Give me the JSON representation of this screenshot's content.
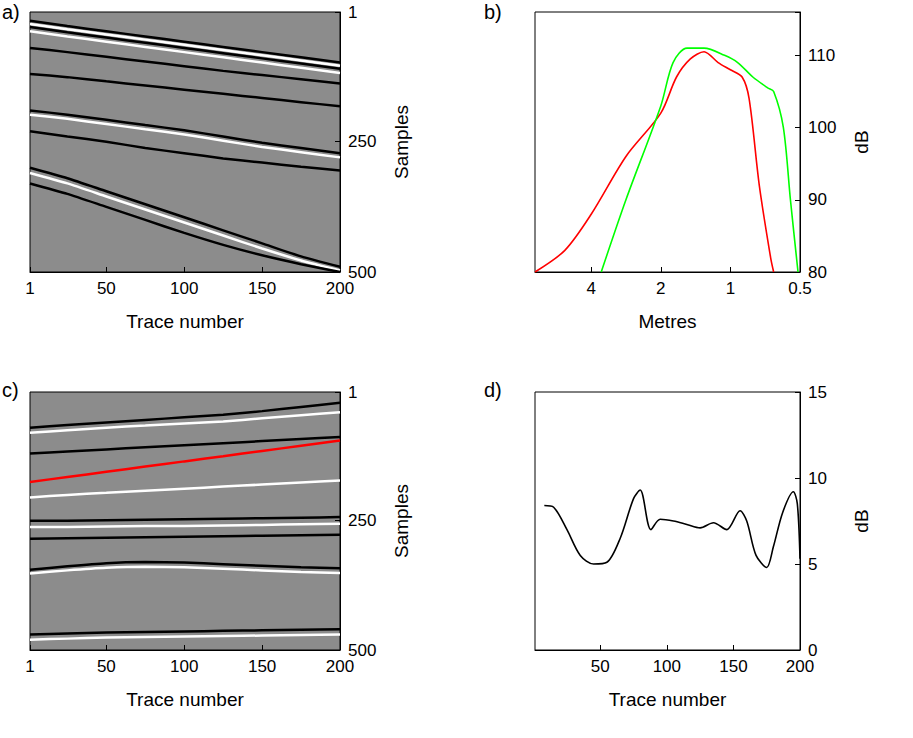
{
  "chart_data": [
    {
      "label": "a)",
      "type": "line",
      "xlabel": "Trace number",
      "ylabel": "Samples",
      "xlim": [
        1,
        200
      ],
      "ylim": [
        500,
        1
      ],
      "xticks": [
        1,
        50,
        100,
        150,
        200
      ],
      "yticks": [
        1,
        250,
        500
      ],
      "grid": false,
      "x": [
        1,
        25,
        50,
        75,
        100,
        125,
        150,
        175,
        200
      ],
      "series": [
        {
          "color": "#000000",
          "values": [
            18,
            28,
            38,
            48,
            58,
            68,
            78,
            88,
            98
          ]
        },
        {
          "color": "#ffffff",
          "values": [
            24,
            34,
            44,
            54,
            64,
            74,
            84,
            94,
            104
          ]
        },
        {
          "color": "#000000",
          "values": [
            30,
            40,
            50,
            60,
            70,
            80,
            90,
            100,
            110
          ]
        },
        {
          "color": "#ffffff",
          "values": [
            38,
            48,
            58,
            68,
            78,
            88,
            98,
            108,
            118
          ]
        },
        {
          "color": "#000000",
          "values": [
            70,
            78,
            87,
            96,
            105,
            114,
            122,
            130,
            138
          ]
        },
        {
          "color": "#000000",
          "values": [
            120,
            126,
            134,
            142,
            150,
            158,
            166,
            174,
            182
          ]
        },
        {
          "color": "#000000",
          "values": [
            190,
            198,
            208,
            218,
            228,
            240,
            252,
            262,
            272
          ]
        },
        {
          "color": "#ffffff",
          "values": [
            198,
            206,
            216,
            226,
            236,
            248,
            260,
            270,
            280
          ]
        },
        {
          "color": "#000000",
          "values": [
            230,
            240,
            250,
            262,
            272,
            282,
            290,
            298,
            305
          ]
        },
        {
          "color": "#000000",
          "values": [
            300,
            320,
            345,
            370,
            395,
            420,
            445,
            470,
            490
          ]
        },
        {
          "color": "#ffffff",
          "values": [
            310,
            330,
            355,
            380,
            405,
            430,
            455,
            478,
            497
          ]
        },
        {
          "color": "#000000",
          "values": [
            330,
            350,
            375,
            400,
            425,
            448,
            468,
            485,
            500
          ]
        }
      ]
    },
    {
      "label": "b)",
      "type": "line",
      "xlabel": "Metres",
      "ylabel": "dB",
      "log": "x",
      "xlim": [
        7,
        0.5
      ],
      "ylim": [
        80,
        116
      ],
      "xticks": [
        4,
        2,
        1,
        0.5
      ],
      "yticks": [
        80,
        90,
        100,
        110
      ],
      "grid": false,
      "series": [
        {
          "color": "#ff0000",
          "x": [
            7,
            5.2,
            4,
            2.83,
            2,
            1.71,
            1.49,
            1.3,
            1.13,
            1,
            0.89,
            0.83,
            0.75,
            0.67,
            0.65
          ],
          "values": [
            80,
            83,
            88,
            96,
            102,
            107,
            109.5,
            110.5,
            109,
            108,
            107,
            104,
            92,
            82,
            80
          ]
        },
        {
          "color": "#00ff00",
          "x": [
            3.62,
            2.83,
            2,
            1.77,
            1.54,
            1.3,
            1.06,
            0.93,
            0.8,
            0.69,
            0.65,
            0.59,
            0.55,
            0.51
          ],
          "values": [
            80,
            90,
            103,
            109,
            111,
            111,
            110,
            109,
            107,
            105.5,
            105,
            100,
            90,
            80
          ]
        }
      ]
    },
    {
      "label": "c)",
      "type": "line",
      "xlabel": "Trace number",
      "ylabel": "Samples",
      "xlim": [
        1,
        200
      ],
      "ylim": [
        500,
        1
      ],
      "xticks": [
        1,
        50,
        100,
        150,
        200
      ],
      "yticks": [
        1,
        250,
        500
      ],
      "grid": false,
      "x": [
        1,
        25,
        50,
        75,
        100,
        125,
        150,
        175,
        200
      ],
      "series": [
        {
          "color": "#000000",
          "values": [
            70,
            65,
            60,
            55,
            50,
            45,
            38,
            30,
            22
          ]
        },
        {
          "color": "#ffffff",
          "values": [
            80,
            75,
            70,
            66,
            62,
            58,
            52,
            46,
            40
          ]
        },
        {
          "color": "#000000",
          "values": [
            120,
            116,
            112,
            108,
            104,
            100,
            96,
            92,
            88
          ]
        },
        {
          "color": "#ffffff",
          "values": [
            205,
            200,
            196,
            192,
            188,
            184,
            180,
            176,
            172
          ]
        },
        {
          "color": "#000000",
          "values": [
            250,
            250,
            249,
            248,
            247,
            246,
            245,
            244,
            243
          ]
        },
        {
          "color": "#ffffff",
          "values": [
            262,
            262,
            261,
            260,
            260,
            259,
            258,
            257,
            256
          ]
        },
        {
          "color": "#000000",
          "values": [
            285,
            284,
            283,
            282,
            281,
            280,
            279,
            278,
            277
          ]
        },
        {
          "color": "#000000",
          "values": [
            345,
            338,
            332,
            330,
            331,
            334,
            337,
            340,
            342
          ]
        },
        {
          "color": "#ffffff",
          "values": [
            352,
            346,
            341,
            339,
            340,
            343,
            346,
            349,
            351
          ]
        },
        {
          "color": "#000000",
          "values": [
            470,
            468,
            466,
            465,
            464,
            463,
            462,
            461,
            460
          ]
        },
        {
          "color": "#ffffff",
          "values": [
            480,
            478,
            476,
            475,
            474,
            473,
            472,
            471,
            470
          ]
        },
        {
          "color": "#ff0000",
          "values": [
            175,
            165.4,
            155.3,
            145.3,
            135.2,
            125.2,
            115.1,
            105,
            95
          ]
        }
      ]
    },
    {
      "label": "d)",
      "type": "line",
      "xlabel": "Trace number",
      "ylabel": "dB",
      "xlim": [
        1,
        200
      ],
      "ylim": [
        0,
        15
      ],
      "xticks": [
        50,
        100,
        150,
        200
      ],
      "yticks": [
        0,
        5,
        10,
        15
      ],
      "grid": false,
      "series": [
        {
          "color": "#000000",
          "x": [
            8,
            15,
            25,
            35,
            45,
            55,
            65,
            75,
            80,
            88,
            95,
            105,
            115,
            125,
            135,
            145,
            155,
            160,
            167,
            175,
            180,
            187,
            195,
            198,
            200
          ],
          "values": [
            8.4,
            8.3,
            7,
            5.5,
            5,
            5.1,
            6.5,
            8.8,
            9.3,
            7,
            7.6,
            7.5,
            7.3,
            7.1,
            7.4,
            7,
            8.1,
            7.5,
            5.5,
            4.8,
            6,
            8,
            9.2,
            8.5,
            5.3
          ]
        }
      ]
    }
  ]
}
